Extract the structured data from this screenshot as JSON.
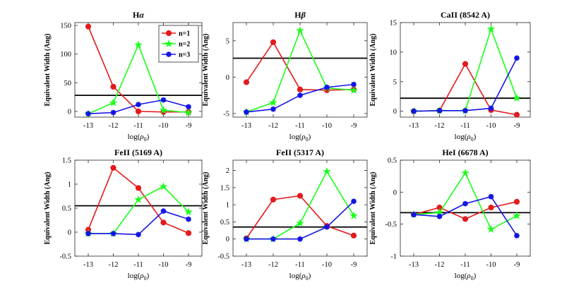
{
  "chart_data": [
    {
      "type": "line",
      "title": "Hα",
      "title_main": "H",
      "title_greek": "α",
      "xlabel": "log(ρ0)",
      "ylabel": "Equivalent Width (Ang)",
      "x": [
        -13,
        -12,
        -11,
        -10,
        -9
      ],
      "xticks": [
        "-13",
        "-12",
        "-11",
        "-10",
        "-9"
      ],
      "ylim": [
        -10,
        155
      ],
      "yticks": [
        0,
        50,
        100,
        150
      ],
      "hline": 28,
      "legend": true,
      "series": [
        {
          "name": "n=1",
          "values": [
            148,
            43,
            0,
            -1,
            -1
          ]
        },
        {
          "name": "n=2",
          "values": [
            -4,
            15,
            116,
            2,
            -2
          ]
        },
        {
          "name": "n=3",
          "values": [
            -4,
            -2,
            12,
            20,
            8
          ]
        }
      ]
    },
    {
      "type": "line",
      "title": "Hβ",
      "title_main": "H",
      "title_greek": "β",
      "xlabel": "log(ρ0)",
      "ylabel": "Equivalent Width (Ang)",
      "x": [
        -13,
        -12,
        -11,
        -10,
        -9
      ],
      "xticks": [
        "-13",
        "-12",
        "-11",
        "-10",
        "-9"
      ],
      "ylim": [
        -5.5,
        7.5
      ],
      "yticks": [
        -5,
        0,
        5
      ],
      "hline": 2.6,
      "series": [
        {
          "name": "n=1",
          "values": [
            -0.7,
            4.8,
            -1.7,
            -1.8,
            -1.7
          ]
        },
        {
          "name": "n=2",
          "values": [
            -4.8,
            -3.5,
            6.4,
            -1.5,
            -1.8
          ]
        },
        {
          "name": "n=3",
          "values": [
            -4.8,
            -4.4,
            -2.5,
            -1.4,
            -1.0
          ]
        }
      ]
    },
    {
      "type": "line",
      "title": "CaII (8542 A)",
      "xlabel": "log(ρ0)",
      "ylabel": "Equivalent Width (Ang)",
      "x": [
        -13,
        -12,
        -11,
        -10,
        -9
      ],
      "xticks": [
        "-13",
        "-12",
        "-11",
        "-10",
        "-9"
      ],
      "ylim": [
        -1,
        15
      ],
      "yticks": [
        0,
        5,
        10,
        15
      ],
      "hline": 2.2,
      "series": [
        {
          "name": "n=1",
          "values": [
            0,
            0.1,
            8,
            0.2,
            -0.6
          ]
        },
        {
          "name": "n=2",
          "values": [
            0,
            0.1,
            0.1,
            13.9,
            2.2
          ]
        },
        {
          "name": "n=3",
          "values": [
            0,
            0.1,
            0.1,
            0.5,
            9
          ]
        }
      ]
    },
    {
      "type": "line",
      "title": "FeII (5169 A)",
      "xlabel": "log(ρ0)",
      "ylabel": "Equivalent Width (Ang)",
      "x": [
        -13,
        -12,
        -11,
        -10,
        -9
      ],
      "xticks": [
        "-13",
        "-12",
        "-11",
        "-10",
        "-9"
      ],
      "ylim": [
        -0.5,
        1.5
      ],
      "yticks": [
        -0.5,
        0,
        0.5,
        1,
        1.5
      ],
      "ytick_labels": [
        "-0.5",
        "0",
        "0.5",
        "1",
        "1.5"
      ],
      "hline": 0.55,
      "series": [
        {
          "name": "n=1",
          "values": [
            0.05,
            1.34,
            0.92,
            0.2,
            -0.02
          ]
        },
        {
          "name": "n=2",
          "values": [
            -0.03,
            -0.03,
            0.68,
            0.95,
            0.42
          ]
        },
        {
          "name": "n=3",
          "values": [
            -0.03,
            -0.03,
            -0.05,
            0.44,
            0.27
          ]
        }
      ]
    },
    {
      "type": "line",
      "title": "FeII (5317 A)",
      "xlabel": "log(ρ0)",
      "ylabel": "Equivalent Width (Ang)",
      "x": [
        -13,
        -12,
        -11,
        -10,
        -9
      ],
      "xticks": [
        "-13",
        "-12",
        "-11",
        "-10",
        "-9"
      ],
      "ylim": [
        -0.5,
        2.3
      ],
      "yticks": [
        -0.5,
        0,
        0.5,
        1,
        1.5,
        2
      ],
      "ytick_labels": [
        "-0.5",
        "0",
        "0.5",
        "1",
        "1.5",
        "2"
      ],
      "hline": 0.35,
      "series": [
        {
          "name": "n=1",
          "values": [
            0.02,
            1.15,
            1.26,
            0.38,
            0.1
          ]
        },
        {
          "name": "n=2",
          "values": [
            0,
            0,
            0.46,
            1.97,
            0.68
          ]
        },
        {
          "name": "n=3",
          "values": [
            0,
            0,
            0,
            0.35,
            1.1
          ]
        }
      ]
    },
    {
      "type": "line",
      "title": "HeI (6678 A)",
      "xlabel": "log(ρ0)",
      "ylabel": "Equivalent Width (Ang)",
      "x": [
        -13,
        -12,
        -11,
        -10,
        -9
      ],
      "xticks": [
        "-13",
        "-12",
        "-11",
        "-10",
        "-9"
      ],
      "ylim": [
        -1,
        0.5
      ],
      "yticks": [
        -1,
        -0.5,
        0,
        0.5
      ],
      "ytick_labels": [
        "-1",
        "-0.5",
        "0",
        "0.5"
      ],
      "hline": -0.32,
      "series": [
        {
          "name": "n=1",
          "values": [
            -0.35,
            -0.24,
            -0.42,
            -0.24,
            -0.15
          ]
        },
        {
          "name": "n=2",
          "values": [
            -0.35,
            -0.32,
            0.3,
            -0.58,
            -0.37
          ]
        },
        {
          "name": "n=3",
          "values": [
            -0.35,
            -0.38,
            -0.18,
            -0.07,
            -0.68
          ]
        }
      ]
    }
  ],
  "series_styles": [
    {
      "name": "n=1",
      "color": "#e41a1c",
      "marker": "circle"
    },
    {
      "name": "n=2",
      "color": "#1aff1a",
      "marker": "star"
    },
    {
      "name": "n=3",
      "color": "#1414e6",
      "marker": "asterisk"
    }
  ],
  "hline_color": "#000000"
}
